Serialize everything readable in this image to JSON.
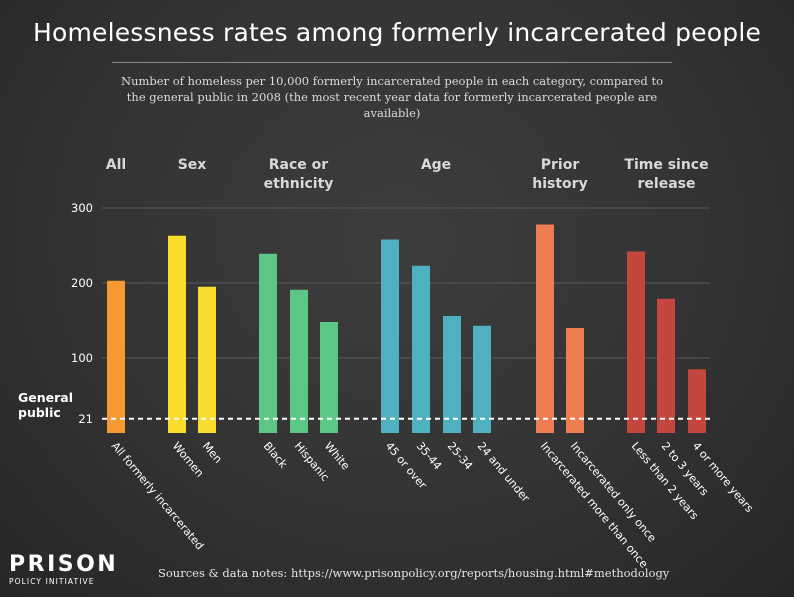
{
  "title": "Homelessness rates among formerly incarcerated people",
  "subtitle": "Number of homeless per 10,000 formerly incarcerated people in each category, compared to the general public in 2008 (the most recent year data for formerly incarcerated people are available)",
  "source": "Sources & data notes: https://www.prisonpolicy.org/reports/housing.html#methodology",
  "logo": {
    "main": "PRISON",
    "sub": "POLICY INITIATIVE"
  },
  "chart_data": {
    "type": "bar",
    "ylim": [
      0,
      300
    ],
    "yticks": [
      100,
      200,
      300
    ],
    "grid": true,
    "groups": [
      {
        "label": [
          "All"
        ],
        "color": "#f59a32",
        "start": 0,
        "count": 1
      },
      {
        "label": [
          "Sex"
        ],
        "color": "#f9dd2e",
        "start": 1,
        "count": 2
      },
      {
        "label": [
          "Race or",
          "ethnicity"
        ],
        "color": "#5bc686",
        "start": 3,
        "count": 3
      },
      {
        "label": [
          "Age"
        ],
        "color": "#4fb0c0",
        "start": 6,
        "count": 4
      },
      {
        "label": [
          "Prior",
          "history"
        ],
        "color": "#ef7d52",
        "start": 10,
        "count": 2
      },
      {
        "label": [
          "Time since",
          "release"
        ],
        "color": "#c4463f",
        "start": 12,
        "count": 3
      }
    ],
    "categories": [
      "All formerly incarcerated",
      "Women",
      "Men",
      "Black",
      "Hispanic",
      "White",
      "45 or over",
      "35-44",
      "25-34",
      "24 and under",
      "Incarcerated more than once",
      "Incarcerated only once",
      "Less than 2 years",
      "2 to 3 years",
      "4 or more years"
    ],
    "values": [
      203,
      263,
      195,
      239,
      191,
      148,
      258,
      223,
      156,
      143,
      278,
      140,
      242,
      179,
      85
    ],
    "reference_line": {
      "label": [
        "General",
        "public"
      ],
      "value": 21,
      "value_label": "21"
    }
  }
}
